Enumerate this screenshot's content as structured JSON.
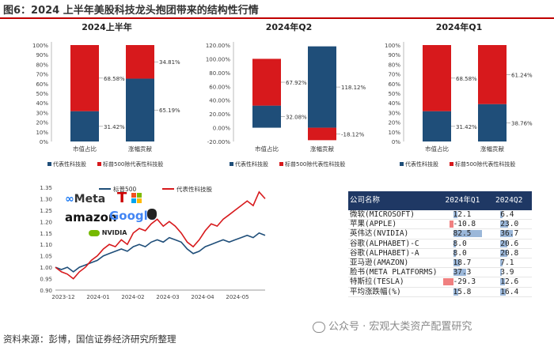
{
  "figure_title": "图6：2024 上半年美股科技龙头抱团带来的结构性行情",
  "source": "资料来源：彭博，国信证券经济研究所整理",
  "watermark": "公众号 · 宏观大类资产配置研究",
  "colors": {
    "blue": "#1f4e79",
    "red": "#d7191c",
    "navy": "#1f3864"
  },
  "chart_data": [
    {
      "type": "bar",
      "stacked": true,
      "title": "2024上半年",
      "categories": [
        "市值占比",
        "涨幅贡献"
      ],
      "series": [
        {
          "name": "代表性科技股",
          "values": [
            31.42,
            65.19
          ]
        },
        {
          "name": "标普500除代表性科技股",
          "values": [
            68.58,
            34.81
          ]
        }
      ],
      "data_labels": [
        [
          "31.42%",
          "65.19%"
        ],
        [
          "68.58%",
          "34.81%"
        ]
      ],
      "yticks": [
        "0%",
        "10%",
        "20%",
        "30%",
        "40%",
        "50%",
        "60%",
        "70%",
        "80%",
        "90%",
        "100%"
      ],
      "ylim": [
        0,
        100
      ]
    },
    {
      "type": "bar",
      "stacked": true,
      "title": "2024年Q2",
      "categories": [
        "市值占比",
        "涨幅贡献"
      ],
      "series": [
        {
          "name": "代表性科技股",
          "values": [
            32.08,
            118.12
          ]
        },
        {
          "name": "标普500除代表性科技股",
          "values": [
            67.92,
            -18.12
          ]
        }
      ],
      "data_labels": [
        [
          "32.08%",
          "118.12%"
        ],
        [
          "67.92%",
          "-18.12%"
        ]
      ],
      "yticks": [
        "-20.00%",
        "0.00%",
        "20.00%",
        "40.00%",
        "60.00%",
        "80.00%",
        "100.00%",
        "120.00%"
      ],
      "ylim": [
        -20,
        120
      ]
    },
    {
      "type": "bar",
      "stacked": true,
      "title": "2024年Q1",
      "categories": [
        "市值占比",
        "涨幅贡献"
      ],
      "series": [
        {
          "name": "代表性科技股",
          "values": [
            31.42,
            38.76
          ]
        },
        {
          "name": "标普500除代表性科技股",
          "values": [
            68.58,
            61.24
          ]
        }
      ],
      "data_labels": [
        [
          "31.42%",
          "38.76%"
        ],
        [
          "68.58%",
          "61.24%"
        ]
      ],
      "yticks": [
        "0%",
        "10%",
        "20%",
        "30%",
        "40%",
        "50%",
        "60%",
        "70%",
        "80%",
        "90%",
        "100%"
      ],
      "ylim": [
        0,
        100
      ]
    },
    {
      "type": "line",
      "series": [
        {
          "name": "标普500",
          "values": [
            1.0,
            0.99,
            1.0,
            0.98,
            1.0,
            1.01,
            1.02,
            1.03,
            1.05,
            1.06,
            1.07,
            1.08,
            1.07,
            1.09,
            1.1,
            1.09,
            1.11,
            1.12,
            1.11,
            1.13,
            1.12,
            1.11,
            1.08,
            1.06,
            1.07,
            1.09,
            1.1,
            1.11,
            1.12,
            1.11,
            1.12,
            1.13,
            1.14,
            1.13,
            1.15,
            1.14
          ]
        },
        {
          "name": "代表性科技股",
          "values": [
            1.0,
            0.98,
            0.97,
            0.95,
            0.98,
            1.0,
            1.03,
            1.05,
            1.08,
            1.1,
            1.09,
            1.12,
            1.1,
            1.15,
            1.17,
            1.16,
            1.19,
            1.21,
            1.18,
            1.2,
            1.18,
            1.15,
            1.11,
            1.09,
            1.12,
            1.16,
            1.19,
            1.18,
            1.21,
            1.23,
            1.25,
            1.27,
            1.29,
            1.27,
            1.33,
            1.3
          ]
        }
      ],
      "xticks": [
        "2023-12",
        "2024-01",
        "2024-02",
        "2024-03",
        "2024-04",
        "2024-05"
      ],
      "yticks": [
        "0.90",
        "0.95",
        "1.00",
        "1.05",
        "1.10",
        "1.15",
        "1.20",
        "1.25",
        "1.30",
        "1.35"
      ],
      "ylim": [
        0.9,
        1.35
      ]
    },
    {
      "type": "table",
      "headers": [
        "公司名称",
        "2024年Q1",
        "2024Q2"
      ],
      "rows": [
        {
          "name": "微软(MICROSOFT)",
          "q1": 12.1,
          "q2": 6.4
        },
        {
          "name": "苹果(APPLE)",
          "q1": -10.8,
          "q2": 23.0
        },
        {
          "name": "英伟达(NVIDIA)",
          "q1": 82.5,
          "q2": 36.7
        },
        {
          "name": "谷歌(ALPHABET)-C",
          "q1": 8.0,
          "q2": 20.6
        },
        {
          "name": "谷歌(ALPHABET)-A",
          "q1": 8.0,
          "q2": 20.8
        },
        {
          "name": "亚马逊(AMAZON)",
          "q1": 18.7,
          "q2": 7.1
        },
        {
          "name": "脸书(META PLATFORMS)",
          "q1": 37.3,
          "q2": 3.9
        },
        {
          "name": "特斯拉(TESLA)",
          "q1": -29.3,
          "q2": 12.6
        },
        {
          "name": "平均涨跌幅(%)",
          "q1": 15.8,
          "q2": 16.4
        }
      ]
    }
  ],
  "logos": {
    "meta": "Meta",
    "amazon": "amazon",
    "google": "Google",
    "nvidia": "NVIDIA",
    "icon_names": [
      "meta-logo",
      "tesla-logo",
      "windows-logo",
      "amazon-logo",
      "google-logo",
      "apple-logo",
      "nvidia-logo"
    ]
  }
}
